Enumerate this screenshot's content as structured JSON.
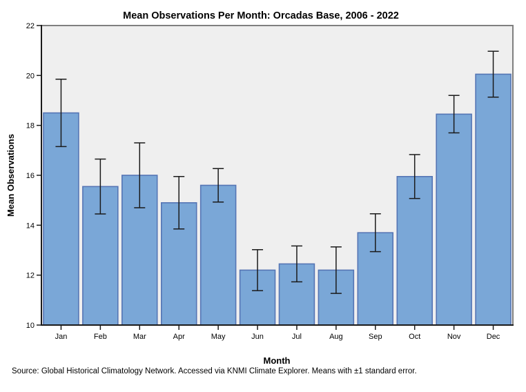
{
  "chart_data": {
    "type": "bar",
    "title": "Mean Observations Per Month: Orcadas Base, 2006 - 2022",
    "xlabel": "Month",
    "ylabel": "Mean Observations",
    "source_note": "Source: Global Historical Climatology Network. Accessed via KNMI Climate Explorer. Means with ±1 standard error.",
    "categories": [
      "Jan",
      "Feb",
      "Mar",
      "Apr",
      "May",
      "Jun",
      "Jul",
      "Aug",
      "Sep",
      "Oct",
      "Nov",
      "Dec"
    ],
    "series": [
      {
        "name": "Mean observations per month",
        "values": [
          18.5,
          15.55,
          16.0,
          14.9,
          15.6,
          12.2,
          12.45,
          12.2,
          13.7,
          15.95,
          18.45,
          20.05
        ],
        "std_errors": [
          1.35,
          1.1,
          1.3,
          1.05,
          0.67,
          0.82,
          0.72,
          0.93,
          0.76,
          0.88,
          0.75,
          0.92
        ]
      }
    ],
    "error_bars": "plus-minus 1 standard error",
    "ylim": [
      10,
      22
    ],
    "yticks": [
      10,
      12,
      14,
      16,
      18,
      20,
      22
    ],
    "grid": false,
    "legend": "none",
    "colors": {
      "bar_fill": "#7aa7d7",
      "bar_edge": "#5575b4",
      "plot_bg": "#efefef",
      "frame": "#7f7f7f",
      "axis": "#1a1a1a",
      "error_bar": "#1a1a1a",
      "text": "#000000"
    }
  }
}
